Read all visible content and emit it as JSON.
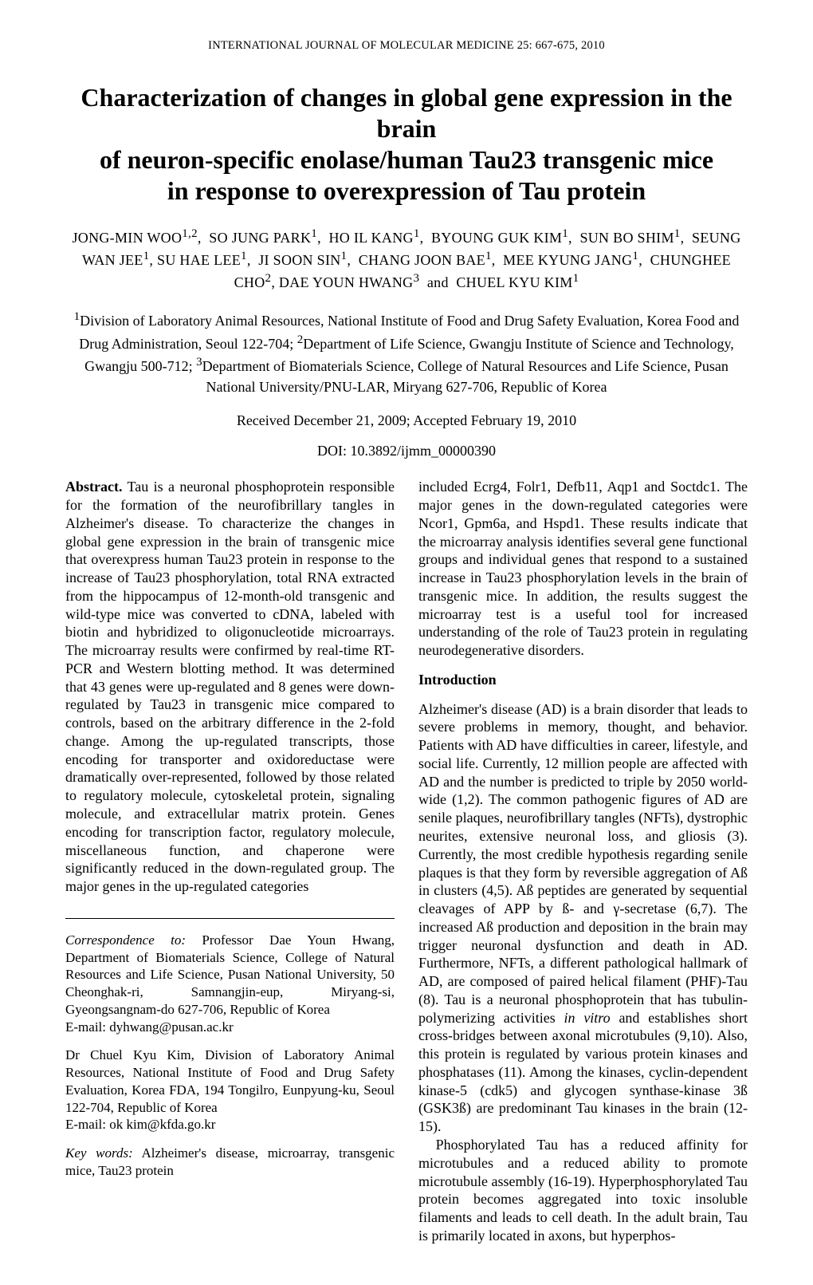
{
  "running_head": "INTERNATIONAL JOURNAL OF MOLECULAR MEDICINE  25: 667-675,  2010",
  "title_l1": "Characterization of changes in global gene expression in the brain",
  "title_l2": "of neuron-specific enolase/human Tau23 transgenic mice",
  "title_l3": "in response to overexpression of Tau protein",
  "authors_html": "JONG-MIN WOO<sup>1,2</sup>,&nbsp; SO JUNG PARK<sup>1</sup>,&nbsp; HO IL KANG<sup>1</sup>,&nbsp; BYOUNG GUK KIM<sup>1</sup>,&nbsp; SUN BO SHIM<sup>1</sup>,&nbsp; SEUNG WAN JEE<sup>1</sup>, SU HAE LEE<sup>1</sup>,&nbsp; JI SOON SIN<sup>1</sup>,&nbsp; CHANG JOON BAE<sup>1</sup>,&nbsp; MEE KYUNG JANG<sup>1</sup>,&nbsp; CHUNGHEE CHO<sup>2</sup>, DAE YOUN HWANG<sup>3</sup>&nbsp; and&nbsp; CHUEL KYU KIM<sup>1</sup>",
  "affiliations_html": "<sup>1</sup>Division of Laboratory Animal Resources, National Institute of Food and Drug Safety Evaluation, Korea Food and Drug Administration, Seoul 122-704; <sup>2</sup>Department of Life Science, Gwangju Institute of Science and Technology, Gwangju 500-712; <sup>3</sup>Department of Biomaterials Science, College of Natural Resources and Life Science, Pusan National University/PNU-LAR, Miryang 627-706, Republic of Korea",
  "dates": "Received December 21, 2009;  Accepted February 19, 2010",
  "doi": "DOI: 10.3892/ijmm_00000390",
  "abstract_lead": "Abstract.",
  "abstract_body": " Tau is a neuronal phosphoprotein responsible for the formation of the neurofibrillary tangles in Alzheimer's disease. To characterize the changes in global gene expression in the brain of transgenic mice that overexpress human Tau23 protein in response to the increase of Tau23 phosphorylation, total RNA extracted from the hippocampus of 12-month-old transgenic and wild-type mice was converted to cDNA, labeled with biotin and hybridized to oligonucleotide microarrays. The microarray results were confirmed by real-time RT-PCR and Western blotting method. It was determined that 43 genes were up-regulated and 8 genes were down-regulated by Tau23 in transgenic mice compared to controls, based on the arbitrary difference in the 2-fold change. Among the up-regulated transcripts, those encoding for transporter and oxidoreductase were dramatically over-represented, followed by those related to regulatory molecule, cytoskeletal protein, signaling molecule, and extracellular matrix protein. Genes encoding for transcription factor, regulatory molecule, miscellaneous function, and chaperone were significantly reduced in the down-regulated group. The major genes in the up-regulated categories",
  "corr_label": "Correspondence to:",
  "corr_body": " Professor Dae Youn Hwang, Department of Biomaterials Science, College of Natural Resources and Life Science, Pusan National University, 50 Cheonghak-ri, Samnangjin-eup, Miryang-si, Gyeongsangnam-do 627-706, Republic of Korea",
  "corr_email": "E-mail: dyhwang@pusan.ac.kr",
  "corr2_body": "Dr Chuel Kyu Kim, Division of Laboratory Animal Resources, National Institute of Food and Drug Safety Evaluation, Korea FDA, 194 Tongilro, Eunpyung-ku, Seoul 122-704, Republic of Korea",
  "corr2_email": "E-mail: ok kim@kfda.go.kr",
  "keywords_label": "Key words:",
  "keywords_body": " Alzheimer's disease, microarray, transgenic mice, Tau23 protein",
  "col2_top": "included Ecrg4, Folr1, Defb11, Aqp1 and Soctdc1. The major genes in the down-regulated categories were Ncor1, Gpm6a, and Hspd1. These results indicate that the microarray analysis identifies several gene functional groups and individual genes that respond to a sustained increase in Tau23 phosphorylation levels in the brain of transgenic mice. In addition, the results suggest the microarray test is a useful tool for increased understanding of the role of Tau23 protein in regulating neurodegenerative disorders.",
  "intro_heading": "Introduction",
  "intro_p1_html": "Alzheimer's disease (AD) is a brain disorder that leads to severe problems in memory, thought, and behavior. Patients with AD have difficulties in career, lifestyle, and social life. Currently, 12 million people are affected with AD and the number is predicted to triple by 2050 world-wide (1,2). The common pathogenic figures of AD are senile plaques, neurofibrillary tangles (NFTs), dystrophic neurites, extensive neuronal loss, and gliosis (3). Currently, the most credible hypothesis regarding senile plaques is that they form by reversible aggregation of Aß in clusters (4,5). Aß peptides are generated by sequential cleavages of APP by ß- and γ-secretase (6,7). The increased Aß production and deposition in the brain may trigger neuronal dysfunction and death in AD. Furthermore, NFTs, a different pathological hallmark of AD, are composed of paired helical filament (PHF)-Tau (8). Tau is a neuronal phosphoprotein that has tubulin-polymerizing activities <i>in vitro</i> and establishes short cross-bridges between axonal microtubules (9,10). Also, this protein is regulated by various protein kinases and phosphatases (11). Among the kinases, cyclin-dependent kinase-5 (cdk5) and glycogen synthase-kinase 3ß (GSK3ß) are predominant Tau kinases in the brain (12-15).",
  "intro_p2": "Phosphorylated Tau has a reduced affinity for microtubules and a reduced ability to promote microtubule assembly (16-19). Hyperphosphorylated Tau protein becomes aggregated into toxic insoluble filaments and leads to cell death. In the adult brain, Tau is primarily located in axons, but hyperphos-"
}
